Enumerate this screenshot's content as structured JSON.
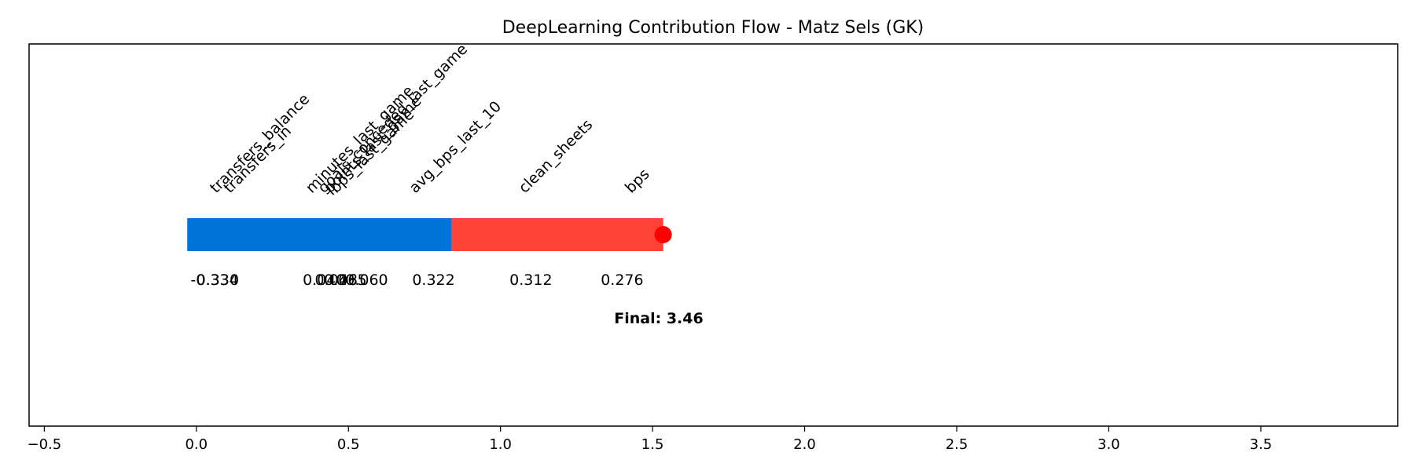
{
  "chart_data": {
    "type": "bar",
    "title": "DeepLearning Contribution Flow - Matz Sels (GK)",
    "xlabel": "",
    "ylabel": "",
    "xlim": [
      -0.55,
      3.95
    ],
    "x_ticks": [
      -0.5,
      0.0,
      0.5,
      1.0,
      1.5,
      2.0,
      2.5,
      3.0,
      3.5
    ],
    "x_tick_labels": [
      "−0.5",
      "0.0",
      "0.5",
      "1.0",
      "1.5",
      "2.0",
      "2.5",
      "3.0",
      "3.5"
    ],
    "grid": false,
    "features": [
      {
        "name": "transfers_balance",
        "label_x": 0.065,
        "value_label": "-0.334",
        "value_x": 0.06
      },
      {
        "name": "transfers_in",
        "label_x": 0.11,
        "value_label": "0.330",
        "value_x": 0.07
      },
      {
        "name": "minutes_last_game",
        "label_x": 0.38,
        "value_label": "0.040",
        "value_x": 0.42
      },
      {
        "name": "goals_conceded_last_game",
        "label_x": 0.42,
        "value_label": "0.048",
        "value_x": 0.46
      },
      {
        "name": "points_last_game",
        "label_x": 0.44,
        "value_label": "0.065",
        "value_x": 0.49
      },
      {
        "name": "bps_last_game",
        "label_x": 0.46,
        "value_label": "0.060",
        "value_x": 0.56
      },
      {
        "name": "avg_bps_last_10",
        "label_x": 0.72,
        "value_label": "0.322",
        "value_x": 0.78
      },
      {
        "name": "clean_sheets",
        "label_x": 1.08,
        "value_label": "0.312",
        "value_x": 1.1
      },
      {
        "name": "bps",
        "label_x": 1.43,
        "value_label": "0.276",
        "value_x": 1.4
      }
    ],
    "segments": [
      {
        "start": -0.03,
        "end": 0.84,
        "color": "#0075d9"
      },
      {
        "start": 0.84,
        "end": 1.535,
        "color": "#ff4136"
      }
    ],
    "final_marker": {
      "x": 1.535,
      "color": "#ff0000"
    },
    "final_label": "Final: 3.46"
  }
}
